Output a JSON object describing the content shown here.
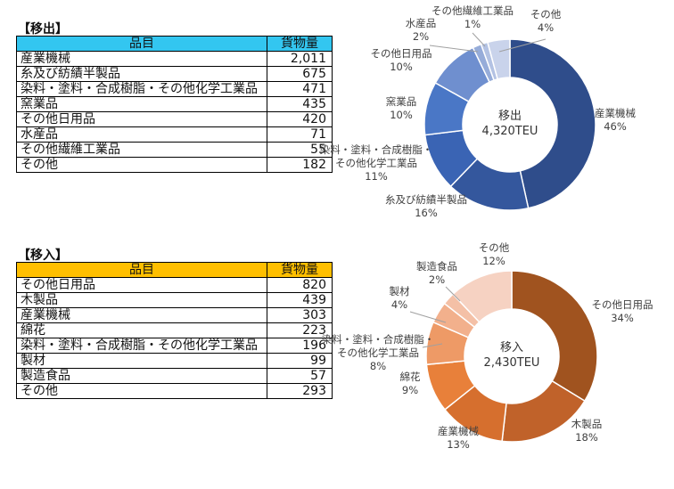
{
  "export": {
    "title": "【移出】",
    "header": {
      "item": "品目",
      "volume": "貨物量"
    },
    "rows": [
      {
        "name": "産業機械",
        "value": "2,011"
      },
      {
        "name": "糸及び紡績半製品",
        "value": "675"
      },
      {
        "name": "染料・塗料・合成樹脂・その他化学工業品",
        "value": "471"
      },
      {
        "name": "窯業品",
        "value": "435"
      },
      {
        "name": "その他日用品",
        "value": "420"
      },
      {
        "name": "水産品",
        "value": "71"
      },
      {
        "name": "その他繊維工業品",
        "value": "55"
      },
      {
        "name": "その他",
        "value": "182"
      }
    ]
  },
  "import": {
    "title": "【移入】",
    "header": {
      "item": "品目",
      "volume": "貨物量"
    },
    "rows": [
      {
        "name": "その他日用品",
        "value": "820"
      },
      {
        "name": "木製品",
        "value": "439"
      },
      {
        "name": "産業機械",
        "value": "303"
      },
      {
        "name": "綿花",
        "value": "223"
      },
      {
        "name": "染料・塗料・合成樹脂・その他化学工業品",
        "value": "196"
      },
      {
        "name": "製材",
        "value": "99"
      },
      {
        "name": "製造食品",
        "value": "57"
      },
      {
        "name": "その他",
        "value": "293"
      }
    ]
  },
  "chart_data": [
    {
      "type": "pie",
      "center_label": [
        "移出",
        "4,320TEU"
      ],
      "categories": [
        "産業機械",
        "糸及び紡績半製品",
        "染料・塗料・合成樹脂・その他化学工業品",
        "窯業品",
        "その他日用品",
        "水産品",
        "その他繊維工業品",
        "その他"
      ],
      "label_lines": [
        [
          "産業機械"
        ],
        [
          "糸及び紡績半製品"
        ],
        [
          "染料・塗料・合成樹脂・",
          "その他化学工業品"
        ],
        [
          "窯業品"
        ],
        [
          "その他日用品"
        ],
        [
          "水産品"
        ],
        [
          "その他繊維工業品"
        ],
        [
          "その他"
        ]
      ],
      "values": [
        2011,
        675,
        471,
        435,
        420,
        71,
        55,
        182
      ],
      "percent_labels": [
        "46%",
        "16%",
        "11%",
        "10%",
        "10%",
        "2%",
        "1%",
        "4%"
      ],
      "colors": [
        "#2f4d8b",
        "#34579d",
        "#3a64b4",
        "#4a77c6",
        "#6f8fcf",
        "#96acd9",
        "#b3c2e3",
        "#c9d3eb"
      ]
    },
    {
      "type": "pie",
      "center_label": [
        "移入",
        "2,430TEU"
      ],
      "categories": [
        "その他日用品",
        "木製品",
        "産業機械",
        "綿花",
        "染料・塗料・合成樹脂・その他化学工業品",
        "製材",
        "製造食品",
        "その他"
      ],
      "label_lines": [
        [
          "その他日用品"
        ],
        [
          "木製品"
        ],
        [
          "産業機械"
        ],
        [
          "綿花"
        ],
        [
          "染料・塗料・合成樹脂・",
          "その他化学工業品"
        ],
        [
          "製材"
        ],
        [
          "製造食品"
        ],
        [
          "その他"
        ]
      ],
      "values": [
        820,
        439,
        303,
        223,
        196,
        99,
        57,
        293
      ],
      "percent_labels": [
        "34%",
        "18%",
        "13%",
        "9%",
        "8%",
        "4%",
        "2%",
        "12%"
      ],
      "colors": [
        "#a0531f",
        "#c0622a",
        "#d66f2e",
        "#e8803a",
        "#ee9a66",
        "#f2b08c",
        "#f4c0a6",
        "#f6d2c2"
      ]
    }
  ]
}
